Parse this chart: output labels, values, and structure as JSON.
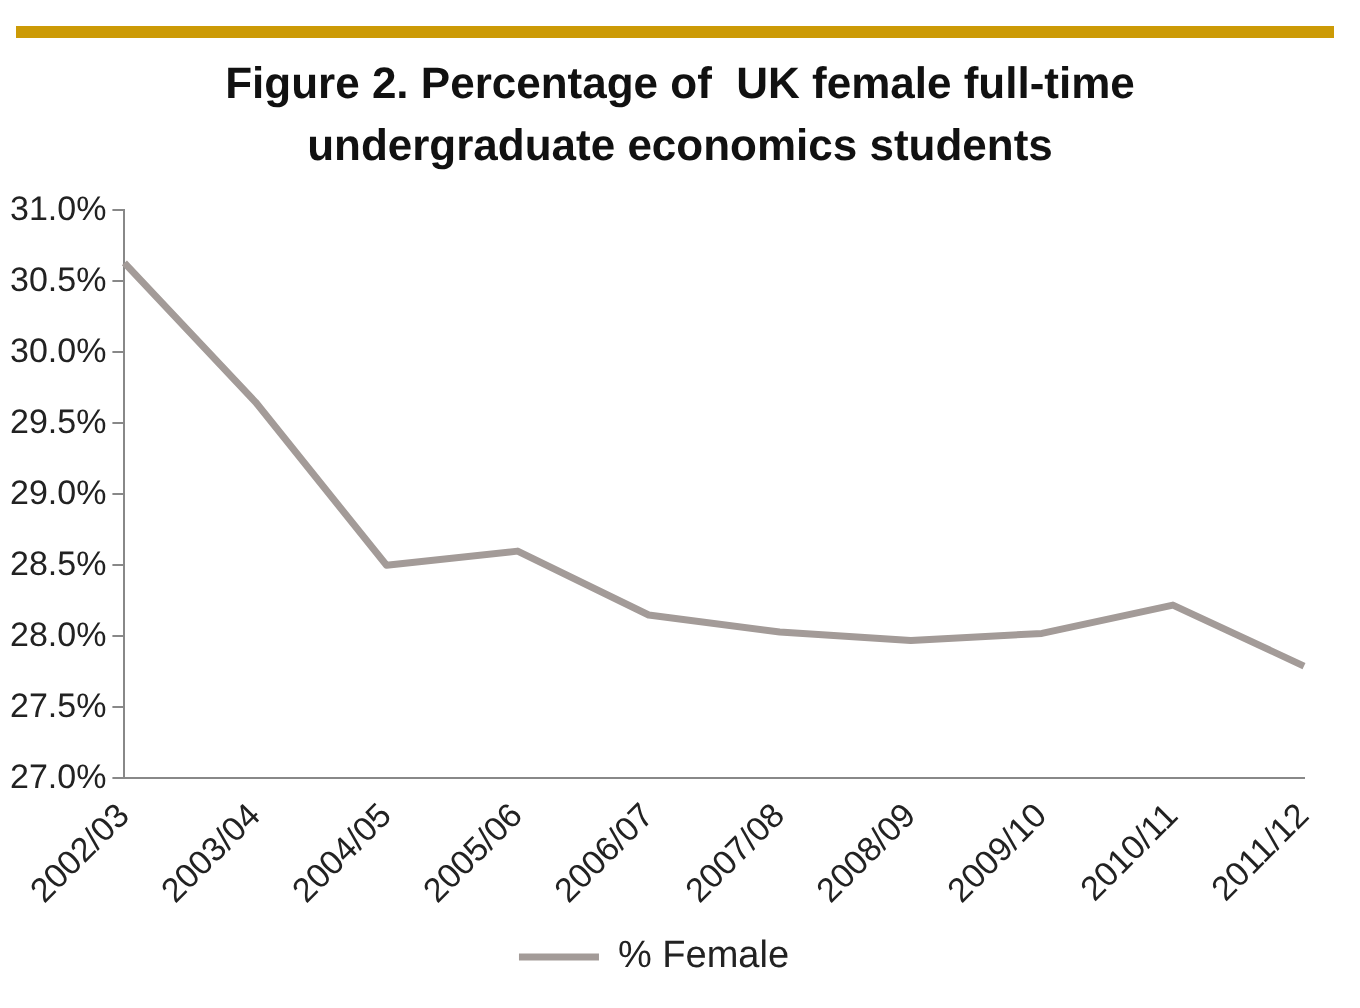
{
  "chart_data": {
    "type": "line",
    "title": "Figure 2. Percentage of  UK female full-time undergraduate economics students",
    "categories": [
      "2002/03",
      "2003/04",
      "2004/05",
      "2005/06",
      "2006/07",
      "2007/08",
      "2008/09",
      "2009/10",
      "2010/11",
      "2011/12"
    ],
    "series": [
      {
        "name": "% Female",
        "color": "#a39b98",
        "values": [
          30.63,
          29.65,
          28.5,
          28.6,
          28.15,
          28.03,
          27.97,
          28.02,
          28.22,
          27.79
        ]
      }
    ],
    "ylim": [
      27,
      31
    ],
    "yticks": [
      {
        "value": 27,
        "label": "27.0%"
      },
      {
        "value": 27.5,
        "label": "27.5%"
      },
      {
        "value": 28,
        "label": "28.0%"
      },
      {
        "value": 28.5,
        "label": "28.5%"
      },
      {
        "value": 29,
        "label": "29.0%"
      },
      {
        "value": 29.5,
        "label": "29.5%"
      },
      {
        "value": 30,
        "label": "30.0%"
      },
      {
        "value": 30.5,
        "label": "30.5%"
      },
      {
        "value": 31,
        "label": "31.0%"
      }
    ],
    "grid": false,
    "legend": "bottom",
    "marker": "none",
    "line_style": "solid"
  }
}
